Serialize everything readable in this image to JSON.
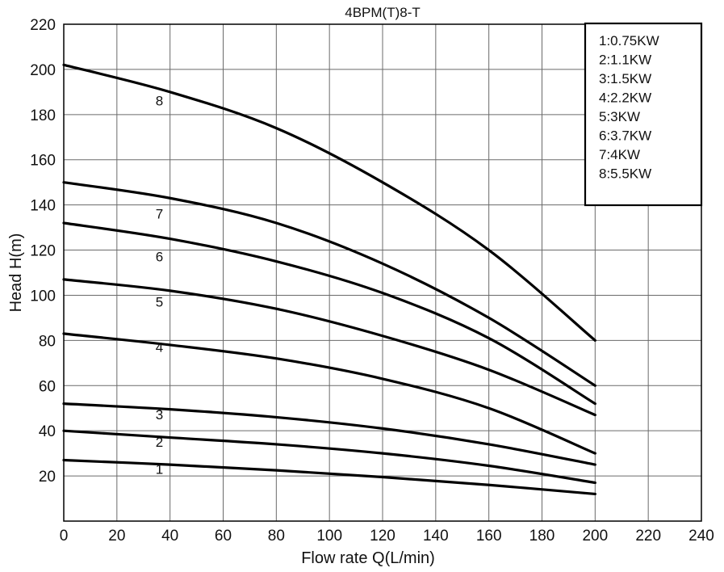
{
  "chart_data": {
    "type": "line",
    "title": "4BPM(T)8-T",
    "xlabel": "Flow rate Q(L/min)",
    "ylabel": "Head H(m)",
    "xlim": [
      0,
      240
    ],
    "ylim": [
      0,
      220
    ],
    "x_ticks": [
      0,
      20,
      40,
      60,
      80,
      100,
      120,
      140,
      160,
      180,
      200,
      220,
      240
    ],
    "y_ticks": [
      20,
      40,
      60,
      80,
      100,
      120,
      140,
      160,
      180,
      200,
      220
    ],
    "grid": true,
    "legend_position": "top-right",
    "legend": [
      "1:0.75KW",
      "2:1.1KW",
      "3:1.5KW",
      "4:2.2KW",
      "5:3KW",
      "6:3.7KW",
      "7:4KW",
      "8:5.5KW"
    ],
    "series": [
      {
        "name": "1",
        "x": [
          0,
          40,
          80,
          120,
          160,
          200
        ],
        "y": [
          27,
          25,
          22.5,
          19.5,
          16,
          12
        ]
      },
      {
        "name": "2",
        "x": [
          0,
          40,
          80,
          120,
          160,
          200
        ],
        "y": [
          40,
          37,
          34,
          30,
          24.5,
          17
        ]
      },
      {
        "name": "3",
        "x": [
          0,
          40,
          80,
          120,
          160,
          200
        ],
        "y": [
          52,
          49.5,
          46,
          41,
          34,
          25
        ]
      },
      {
        "name": "4",
        "x": [
          0,
          40,
          80,
          120,
          160,
          200
        ],
        "y": [
          83,
          78,
          72,
          63,
          50,
          30
        ]
      },
      {
        "name": "5",
        "x": [
          0,
          40,
          80,
          120,
          160,
          200
        ],
        "y": [
          107,
          102,
          94,
          82,
          67,
          47
        ]
      },
      {
        "name": "6",
        "x": [
          0,
          40,
          80,
          120,
          160,
          200
        ],
        "y": [
          132,
          125,
          115,
          101,
          81,
          52
        ]
      },
      {
        "name": "7",
        "x": [
          0,
          40,
          80,
          120,
          160,
          200
        ],
        "y": [
          150,
          143,
          132,
          114,
          90,
          60
        ]
      },
      {
        "name": "8",
        "x": [
          0,
          40,
          80,
          120,
          160,
          200
        ],
        "y": [
          202,
          190,
          174,
          150,
          120,
          80
        ]
      }
    ],
    "curve_labels": [
      {
        "text": "1",
        "x": 36,
        "y": 21
      },
      {
        "text": "2",
        "x": 36,
        "y": 33
      },
      {
        "text": "3",
        "x": 36,
        "y": 45
      },
      {
        "text": "4",
        "x": 36,
        "y": 75
      },
      {
        "text": "5",
        "x": 36,
        "y": 95
      },
      {
        "text": "6",
        "x": 36,
        "y": 115
      },
      {
        "text": "7",
        "x": 36,
        "y": 134
      },
      {
        "text": "8",
        "x": 36,
        "y": 184
      }
    ]
  }
}
